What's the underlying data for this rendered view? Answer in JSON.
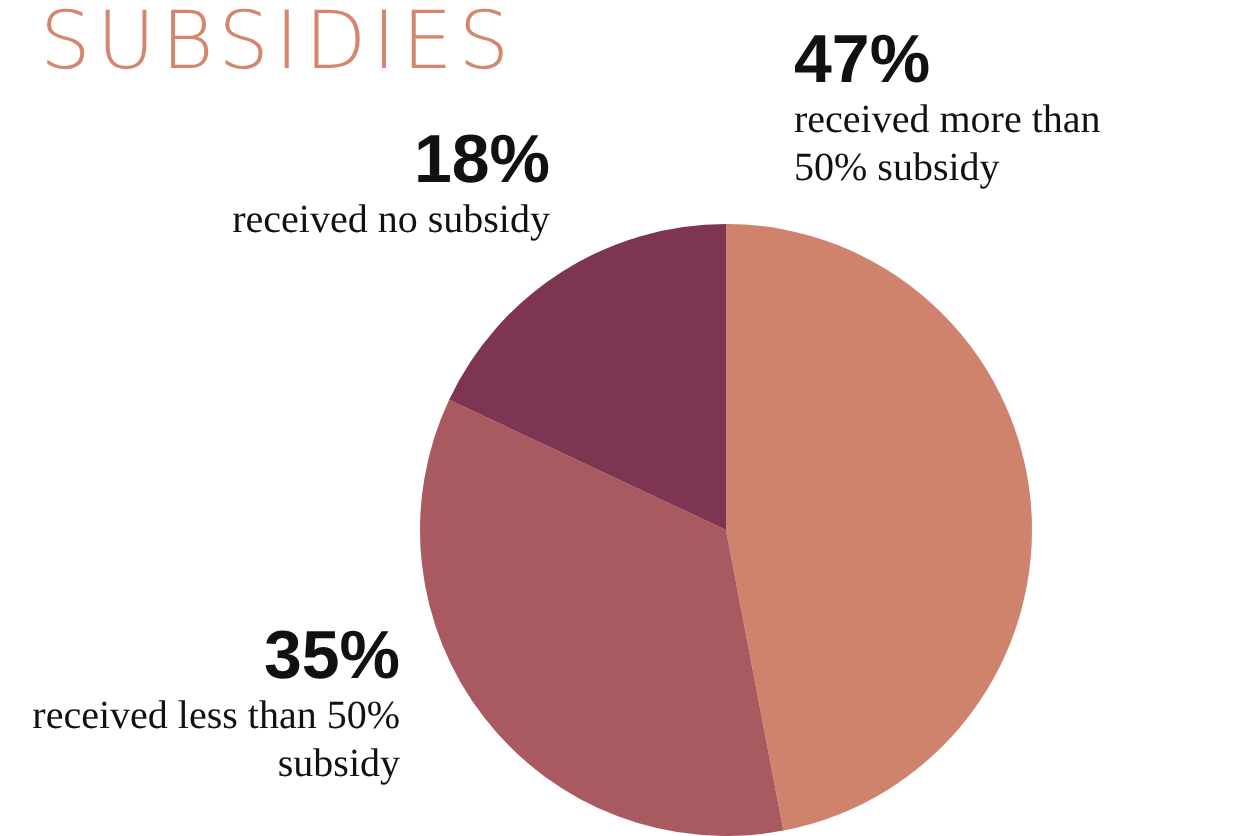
{
  "chart_data": {
    "type": "pie",
    "title": "SUBSIDIES",
    "categories": [
      "received more than 50% subsidy",
      "received less than 50% subsidy",
      "received no subsidy"
    ],
    "values": [
      47,
      35,
      18
    ],
    "colors": [
      "#cf826c",
      "#a85a60",
      "#7e3551"
    ],
    "value_labels": [
      "47%",
      "35%",
      "18%"
    ],
    "legend": false
  }
}
